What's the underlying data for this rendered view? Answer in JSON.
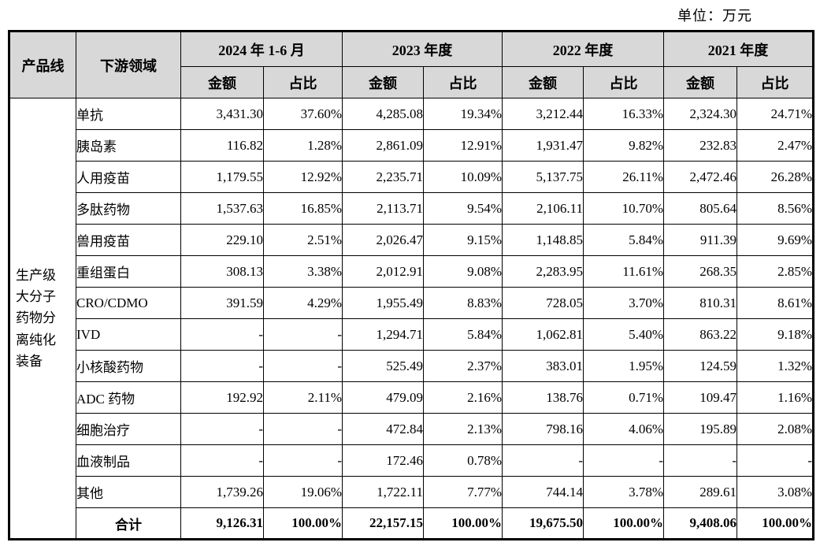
{
  "page": {
    "unit_label": "单位：万元"
  },
  "table": {
    "headers": {
      "product_line": "产品线",
      "downstream": "下游领域",
      "amount": "金额",
      "share": "占比"
    },
    "periods": [
      "2024 年 1-6 月",
      "2023 年度",
      "2022 年度",
      "2021 年度"
    ],
    "product_line_label": "生产级大分子药物分离纯化装备",
    "rows": [
      {
        "sector": "单抗",
        "values": [
          "3,431.30",
          "37.60%",
          "4,285.08",
          "19.34%",
          "3,212.44",
          "16.33%",
          "2,324.30",
          "24.71%"
        ]
      },
      {
        "sector": "胰岛素",
        "values": [
          "116.82",
          "1.28%",
          "2,861.09",
          "12.91%",
          "1,931.47",
          "9.82%",
          "232.83",
          "2.47%"
        ]
      },
      {
        "sector": "人用疫苗",
        "values": [
          "1,179.55",
          "12.92%",
          "2,235.71",
          "10.09%",
          "5,137.75",
          "26.11%",
          "2,472.46",
          "26.28%"
        ]
      },
      {
        "sector": "多肽药物",
        "values": [
          "1,537.63",
          "16.85%",
          "2,113.71",
          "9.54%",
          "2,106.11",
          "10.70%",
          "805.64",
          "8.56%"
        ]
      },
      {
        "sector": "兽用疫苗",
        "values": [
          "229.10",
          "2.51%",
          "2,026.47",
          "9.15%",
          "1,148.85",
          "5.84%",
          "911.39",
          "9.69%"
        ]
      },
      {
        "sector": "重组蛋白",
        "values": [
          "308.13",
          "3.38%",
          "2,012.91",
          "9.08%",
          "2,283.95",
          "11.61%",
          "268.35",
          "2.85%"
        ]
      },
      {
        "sector": "CRO/CDMO",
        "values": [
          "391.59",
          "4.29%",
          "1,955.49",
          "8.83%",
          "728.05",
          "3.70%",
          "810.31",
          "8.61%"
        ]
      },
      {
        "sector": "IVD",
        "values": [
          "-",
          "-",
          "1,294.71",
          "5.84%",
          "1,062.81",
          "5.40%",
          "863.22",
          "9.18%"
        ]
      },
      {
        "sector": "小核酸药物",
        "values": [
          "-",
          "-",
          "525.49",
          "2.37%",
          "383.01",
          "1.95%",
          "124.59",
          "1.32%"
        ]
      },
      {
        "sector": "ADC 药物",
        "values": [
          "192.92",
          "2.11%",
          "479.09",
          "2.16%",
          "138.76",
          "0.71%",
          "109.47",
          "1.16%"
        ]
      },
      {
        "sector": "细胞治疗",
        "values": [
          "-",
          "-",
          "472.84",
          "2.13%",
          "798.16",
          "4.06%",
          "195.89",
          "2.08%"
        ]
      },
      {
        "sector": "血液制品",
        "values": [
          "-",
          "-",
          "172.46",
          "0.78%",
          "-",
          "-",
          "-",
          "-"
        ]
      },
      {
        "sector": "其他",
        "values": [
          "1,739.26",
          "19.06%",
          "1,722.11",
          "7.77%",
          "744.14",
          "3.78%",
          "289.61",
          "3.08%"
        ]
      }
    ],
    "total_row": {
      "label": "合计",
      "values": [
        "9,126.31",
        "100.00%",
        "22,157.15",
        "100.00%",
        "19,675.50",
        "100.00%",
        "9,408.06",
        "100.00%"
      ]
    }
  }
}
